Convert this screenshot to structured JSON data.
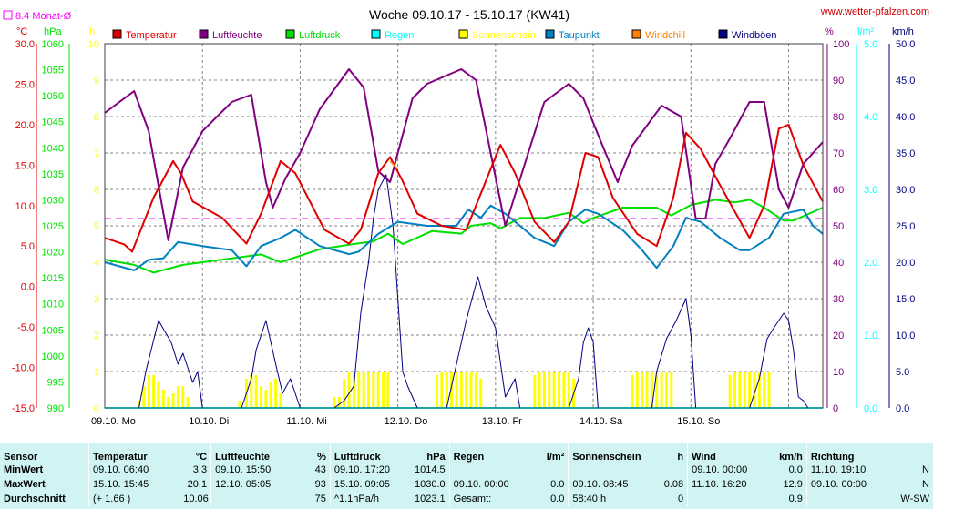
{
  "title": "Woche 09.10.17 - 15.10.17 (KW41)",
  "site": "www.wetter-pfalzen.com",
  "monthly_avg_label": "8.4 Monat-Ø",
  "units_left": {
    "temp": "°C",
    "press": "hPa",
    "sun": "h"
  },
  "units_right": {
    "hum": "%",
    "rain": "l/m²",
    "wind": "km/h"
  },
  "colors": {
    "temp": "#e00000",
    "hum": "#800080",
    "press": "#00e000",
    "rain": "#00ffff",
    "sun": "#ffff00",
    "dew": "#0080c0",
    "windchill": "#ff8000",
    "gust": "#000080",
    "avg": "#ff00ff",
    "grid": "#808080"
  },
  "chart_data": {
    "type": "line",
    "title": "Woche 09.10.17 - 15.10.17 (KW41)",
    "x_days": [
      "09.10. Mo",
      "10.10. Di",
      "11.10. Mi",
      "12.10. Do",
      "13.10. Fr",
      "14.10. Sa",
      "15.10. So"
    ],
    "legend": [
      {
        "name": "Temperatur",
        "color": "#e00000"
      },
      {
        "name": "Luftfeuchte",
        "color": "#800080"
      },
      {
        "name": "Luftdruck",
        "color": "#00e000"
      },
      {
        "name": "Regen",
        "color": "#00ffff"
      },
      {
        "name": "Sonnenschein",
        "color": "#ffff00"
      },
      {
        "name": "Taupunkt",
        "color": "#0080c0"
      },
      {
        "name": "Windchill",
        "color": "#ff8000"
      },
      {
        "name": "Windböen",
        "color": "#000080"
      }
    ],
    "axes": {
      "temp": {
        "unit": "°C",
        "min": -15,
        "max": 30,
        "ticks": [
          "30.0",
          "25.0",
          "20.0",
          "15.0",
          "10.0",
          "5.0",
          "0.0",
          "-5.0",
          "-10.0",
          "-15.0"
        ]
      },
      "press": {
        "unit": "hPa",
        "min": 990,
        "max": 1060,
        "ticks": [
          "1060",
          "1055",
          "1050",
          "1045",
          "1040",
          "1035",
          "1030",
          "1025",
          "1020",
          "1015",
          "1010",
          "1005",
          "1000",
          "995",
          "990"
        ]
      },
      "sun": {
        "unit": "h",
        "min": 0,
        "max": 10,
        "ticks": [
          "10",
          "9",
          "8",
          "7",
          "6",
          "5",
          "4",
          "3",
          "2",
          "1",
          "0"
        ]
      },
      "hum": {
        "unit": "%",
        "min": 0,
        "max": 100,
        "ticks": [
          "100",
          "90",
          "80",
          "70",
          "60",
          "50",
          "40",
          "30",
          "20",
          "10",
          "0"
        ]
      },
      "rain": {
        "unit": "l/m²",
        "min": 0,
        "max": 5,
        "ticks": [
          "5.0",
          "4.0",
          "3.0",
          "2.0",
          "1.0",
          "0.0"
        ]
      },
      "wind": {
        "unit": "km/h",
        "min": 0,
        "max": 50,
        "ticks": [
          "50.0",
          "45.0",
          "40.0",
          "35.0",
          "30.0",
          "25.0",
          "20.0",
          "15.0",
          "10.0",
          "5.0",
          "0.0"
        ]
      }
    },
    "monthly_avg_temp": 8.4,
    "temperature": [
      [
        0,
        6.0
      ],
      [
        0.2,
        5.2
      ],
      [
        0.28,
        4.3
      ],
      [
        0.5,
        11
      ],
      [
        0.7,
        15.5
      ],
      [
        0.78,
        14
      ],
      [
        0.9,
        10.5
      ],
      [
        1.2,
        8.5
      ],
      [
        1.45,
        5.3
      ],
      [
        1.6,
        9
      ],
      [
        1.8,
        15.5
      ],
      [
        1.95,
        14
      ],
      [
        2.25,
        7
      ],
      [
        2.5,
        5.3
      ],
      [
        2.62,
        7
      ],
      [
        2.8,
        14
      ],
      [
        2.92,
        16
      ],
      [
        3.05,
        13
      ],
      [
        3.2,
        9
      ],
      [
        3.45,
        7.5
      ],
      [
        3.7,
        7
      ],
      [
        3.9,
        13
      ],
      [
        4.05,
        17.5
      ],
      [
        4.2,
        14
      ],
      [
        4.4,
        8
      ],
      [
        4.6,
        5.5
      ],
      [
        4.75,
        8
      ],
      [
        4.92,
        16.5
      ],
      [
        5.05,
        16
      ],
      [
        5.2,
        11
      ],
      [
        5.45,
        6.5
      ],
      [
        5.65,
        5
      ],
      [
        5.82,
        11
      ],
      [
        5.95,
        19
      ],
      [
        6.1,
        17
      ],
      [
        6.3,
        12.5
      ],
      [
        6.6,
        6
      ],
      [
        6.75,
        10
      ],
      [
        6.9,
        19.5
      ],
      [
        7.0,
        20
      ],
      [
        7.15,
        15
      ],
      [
        7.35,
        10.5
      ]
    ],
    "humidity": [
      [
        0,
        81
      ],
      [
        0.1,
        83
      ],
      [
        0.3,
        87
      ],
      [
        0.45,
        76
      ],
      [
        0.65,
        46
      ],
      [
        0.8,
        66
      ],
      [
        1.0,
        76
      ],
      [
        1.3,
        84
      ],
      [
        1.5,
        86
      ],
      [
        1.65,
        62
      ],
      [
        1.72,
        55
      ],
      [
        1.85,
        63
      ],
      [
        2.0,
        70
      ],
      [
        2.2,
        82
      ],
      [
        2.5,
        93
      ],
      [
        2.65,
        88
      ],
      [
        2.8,
        65
      ],
      [
        2.92,
        62
      ],
      [
        3.0,
        70
      ],
      [
        3.15,
        85
      ],
      [
        3.3,
        89
      ],
      [
        3.65,
        93
      ],
      [
        3.8,
        90
      ],
      [
        3.95,
        70
      ],
      [
        4.1,
        50
      ],
      [
        4.3,
        67
      ],
      [
        4.5,
        84
      ],
      [
        4.75,
        89
      ],
      [
        4.9,
        85
      ],
      [
        5.05,
        75
      ],
      [
        5.25,
        62
      ],
      [
        5.4,
        72
      ],
      [
        5.7,
        83
      ],
      [
        5.9,
        80
      ],
      [
        6.05,
        52
      ],
      [
        6.15,
        52
      ],
      [
        6.25,
        67
      ],
      [
        6.4,
        74
      ],
      [
        6.6,
        84
      ],
      [
        6.75,
        84
      ],
      [
        6.9,
        60
      ],
      [
        7.0,
        55
      ],
      [
        7.15,
        67
      ],
      [
        7.35,
        73
      ]
    ],
    "pressure": [
      [
        0,
        1018.5
      ],
      [
        0.3,
        1017.5
      ],
      [
        0.5,
        1016
      ],
      [
        0.8,
        1017.5
      ],
      [
        1.2,
        1018.5
      ],
      [
        1.6,
        1019.5
      ],
      [
        1.8,
        1018
      ],
      [
        2.2,
        1020.5
      ],
      [
        2.55,
        1021.5
      ],
      [
        2.75,
        1022
      ],
      [
        2.9,
        1023.5
      ],
      [
        3.05,
        1021.5
      ],
      [
        3.35,
        1024
      ],
      [
        3.65,
        1023.5
      ],
      [
        3.75,
        1025
      ],
      [
        3.95,
        1025.5
      ],
      [
        4.05,
        1024.5
      ],
      [
        4.25,
        1026.5
      ],
      [
        4.5,
        1026.5
      ],
      [
        4.75,
        1027.5
      ],
      [
        4.9,
        1025.5
      ],
      [
        5.0,
        1026.5
      ],
      [
        5.3,
        1028.5
      ],
      [
        5.65,
        1028.5
      ],
      [
        5.8,
        1027
      ],
      [
        6.0,
        1029
      ],
      [
        6.25,
        1030
      ],
      [
        6.45,
        1029.5
      ],
      [
        6.6,
        1030
      ],
      [
        6.75,
        1028.5
      ],
      [
        6.95,
        1026
      ],
      [
        7.05,
        1026
      ],
      [
        7.35,
        1028.5
      ]
    ],
    "dewpoint": [
      [
        0,
        3.0
      ],
      [
        0.3,
        2.0
      ],
      [
        0.45,
        3.3
      ],
      [
        0.6,
        3.5
      ],
      [
        0.75,
        5.5
      ],
      [
        1.0,
        5.0
      ],
      [
        1.3,
        4.5
      ],
      [
        1.45,
        2.5
      ],
      [
        1.6,
        5
      ],
      [
        1.8,
        6
      ],
      [
        1.95,
        7
      ],
      [
        2.2,
        5
      ],
      [
        2.5,
        4
      ],
      [
        2.6,
        4.3
      ],
      [
        2.8,
        6.5
      ],
      [
        3.0,
        8.0
      ],
      [
        3.3,
        7.5
      ],
      [
        3.6,
        7.5
      ],
      [
        3.72,
        9.5
      ],
      [
        3.85,
        8.5
      ],
      [
        3.95,
        10
      ],
      [
        4.1,
        9
      ],
      [
        4.4,
        6
      ],
      [
        4.6,
        5
      ],
      [
        4.75,
        8
      ],
      [
        4.92,
        9.5
      ],
      [
        5.05,
        9
      ],
      [
        5.3,
        7
      ],
      [
        5.5,
        4.5
      ],
      [
        5.65,
        2.3
      ],
      [
        5.82,
        5
      ],
      [
        5.95,
        8.5
      ],
      [
        6.1,
        8
      ],
      [
        6.3,
        6
      ],
      [
        6.5,
        4.5
      ],
      [
        6.6,
        4.5
      ],
      [
        6.8,
        6
      ],
      [
        6.95,
        9
      ],
      [
        7.15,
        9.5
      ],
      [
        7.25,
        7.5
      ],
      [
        7.35,
        6.5
      ]
    ],
    "windchill": [
      [
        2.92,
        15.5
      ],
      [
        3.0,
        14.5
      ]
    ],
    "gusts": [
      [
        0,
        0
      ],
      [
        0.35,
        0
      ],
      [
        0.42,
        5
      ],
      [
        0.55,
        12
      ],
      [
        0.68,
        9
      ],
      [
        0.75,
        6
      ],
      [
        0.8,
        7.5
      ],
      [
        0.9,
        3.5
      ],
      [
        0.95,
        5
      ],
      [
        1.0,
        0
      ],
      [
        1.4,
        0
      ],
      [
        1.5,
        4
      ],
      [
        1.55,
        8
      ],
      [
        1.65,
        12
      ],
      [
        1.75,
        6
      ],
      [
        1.82,
        2
      ],
      [
        1.9,
        4
      ],
      [
        2.0,
        0
      ],
      [
        2.35,
        0
      ],
      [
        2.45,
        1
      ],
      [
        2.55,
        3
      ],
      [
        2.62,
        13
      ],
      [
        2.7,
        20
      ],
      [
        2.75,
        26
      ],
      [
        2.8,
        30
      ],
      [
        2.88,
        32
      ],
      [
        2.95,
        25
      ],
      [
        3.05,
        5
      ],
      [
        3.1,
        3
      ],
      [
        3.15,
        1.5
      ],
      [
        3.2,
        0
      ],
      [
        3.5,
        0
      ],
      [
        3.6,
        6
      ],
      [
        3.7,
        12
      ],
      [
        3.82,
        18
      ],
      [
        3.9,
        14
      ],
      [
        4.0,
        11
      ],
      [
        4.1,
        1.5
      ],
      [
        4.2,
        4
      ],
      [
        4.25,
        0
      ],
      [
        4.75,
        0
      ],
      [
        4.85,
        4
      ],
      [
        4.9,
        9
      ],
      [
        4.95,
        11
      ],
      [
        5.0,
        9
      ],
      [
        5.05,
        0
      ],
      [
        5.6,
        0
      ],
      [
        5.65,
        5
      ],
      [
        5.75,
        9.5
      ],
      [
        5.85,
        12
      ],
      [
        5.95,
        15
      ],
      [
        6.0,
        10
      ],
      [
        6.05,
        0
      ],
      [
        6.6,
        0
      ],
      [
        6.7,
        4
      ],
      [
        6.78,
        9.5
      ],
      [
        6.85,
        11
      ],
      [
        6.95,
        13
      ],
      [
        7.0,
        12
      ],
      [
        7.05,
        8
      ],
      [
        7.1,
        1.5
      ],
      [
        7.15,
        1
      ],
      [
        7.2,
        0
      ]
    ],
    "sunshine": [
      [
        0.35,
        0.2
      ],
      [
        0.4,
        0.6
      ],
      [
        0.45,
        0.9
      ],
      [
        0.5,
        0.9
      ],
      [
        0.55,
        0.7
      ],
      [
        0.6,
        0.5
      ],
      [
        0.65,
        0.3
      ],
      [
        0.7,
        0.4
      ],
      [
        0.75,
        0.6
      ],
      [
        0.8,
        0.6
      ],
      [
        0.85,
        0.3
      ],
      [
        1.38,
        0.2
      ],
      [
        1.45,
        0.8
      ],
      [
        1.5,
        0.9
      ],
      [
        1.55,
        0.9
      ],
      [
        1.6,
        0.6
      ],
      [
        1.65,
        0.5
      ],
      [
        1.7,
        0.7
      ],
      [
        1.75,
        0.8
      ],
      [
        1.8,
        0.4
      ],
      [
        2.35,
        0.3
      ],
      [
        2.4,
        0.3
      ],
      [
        2.45,
        0.8
      ],
      [
        2.5,
        1
      ],
      [
        2.55,
        1
      ],
      [
        2.6,
        1
      ],
      [
        2.65,
        1
      ],
      [
        2.7,
        1
      ],
      [
        2.75,
        1
      ],
      [
        2.8,
        1
      ],
      [
        2.85,
        1
      ],
      [
        2.9,
        1
      ],
      [
        3.4,
        0.9
      ],
      [
        3.45,
        1
      ],
      [
        3.5,
        1
      ],
      [
        3.55,
        1
      ],
      [
        3.6,
        1
      ],
      [
        3.65,
        1
      ],
      [
        3.7,
        1
      ],
      [
        3.75,
        1
      ],
      [
        3.8,
        1
      ],
      [
        3.85,
        0.8
      ],
      [
        4.4,
        0.9
      ],
      [
        4.45,
        1
      ],
      [
        4.5,
        1
      ],
      [
        4.55,
        1
      ],
      [
        4.6,
        1
      ],
      [
        4.65,
        1
      ],
      [
        4.7,
        1
      ],
      [
        4.75,
        1
      ],
      [
        4.8,
        0.8
      ],
      [
        5.4,
        0.9
      ],
      [
        5.45,
        1
      ],
      [
        5.5,
        1
      ],
      [
        5.55,
        1
      ],
      [
        5.6,
        1
      ],
      [
        5.65,
        1
      ],
      [
        5.7,
        1
      ],
      [
        5.75,
        1
      ],
      [
        5.8,
        1
      ],
      [
        6.4,
        0.9
      ],
      [
        6.45,
        1
      ],
      [
        6.5,
        1
      ],
      [
        6.55,
        1
      ],
      [
        6.6,
        1
      ],
      [
        6.65,
        1
      ],
      [
        6.7,
        1
      ],
      [
        6.75,
        1
      ],
      [
        6.8,
        1
      ]
    ],
    "rain": [
      [
        0,
        0
      ],
      [
        7.35,
        0
      ]
    ]
  },
  "stats": {
    "headers": {
      "sensor": "Sensor",
      "temp": "Temperatur",
      "temp_unit": "°C",
      "hum": "Luftfeuchte",
      "hum_unit": "%",
      "press": "Luftdruck",
      "press_unit": "hPa",
      "rain": "Regen",
      "rain_unit": "l/m²",
      "sun": "Sonnenschein",
      "sun_unit": "h",
      "wind": "Wind",
      "wind_unit": "km/h",
      "dir": "Richtung"
    },
    "rows": [
      {
        "label": "MinWert",
        "temp_t": "09.10. 06:40",
        "temp_v": "3.3",
        "hum_t": "09.10. 15:50",
        "hum_v": "43",
        "press_t": "09.10. 17:20",
        "press_v": "1014.5",
        "rain_t": "",
        "rain_v": "",
        "sun_t": "",
        "sun_v": "",
        "wind_t": "09.10. 00:00",
        "wind_v": "0.0",
        "dir_t": "11.10. 19:10",
        "dir_v": "N"
      },
      {
        "label": "MaxWert",
        "temp_t": "15.10. 15:45",
        "temp_v": "20.1",
        "hum_t": "12.10. 05:05",
        "hum_v": "93",
        "press_t": "15.10. 09:05",
        "press_v": "1030.0",
        "rain_t": "09.10. 00:00",
        "rain_v": "0.0",
        "sun_t": "09.10. 08:45",
        "sun_v": "0.08",
        "wind_t": "11.10. 16:20",
        "wind_v": "12.9",
        "dir_t": "09.10. 00:00",
        "dir_v": "N"
      },
      {
        "label": "Durchschnitt",
        "temp_t": "(+ 1.66 )",
        "temp_v": "10.06",
        "hum_t": "",
        "hum_v": "75",
        "press_t": "^1.1hPa/h",
        "press_v": "1023.1",
        "rain_t": "Gesamt:",
        "rain_v": "0.0",
        "sun_t": "58:40 h",
        "sun_v": "0",
        "wind_t": "",
        "wind_v": "0.9",
        "dir_t": "",
        "dir_v": "W-SW"
      }
    ]
  }
}
